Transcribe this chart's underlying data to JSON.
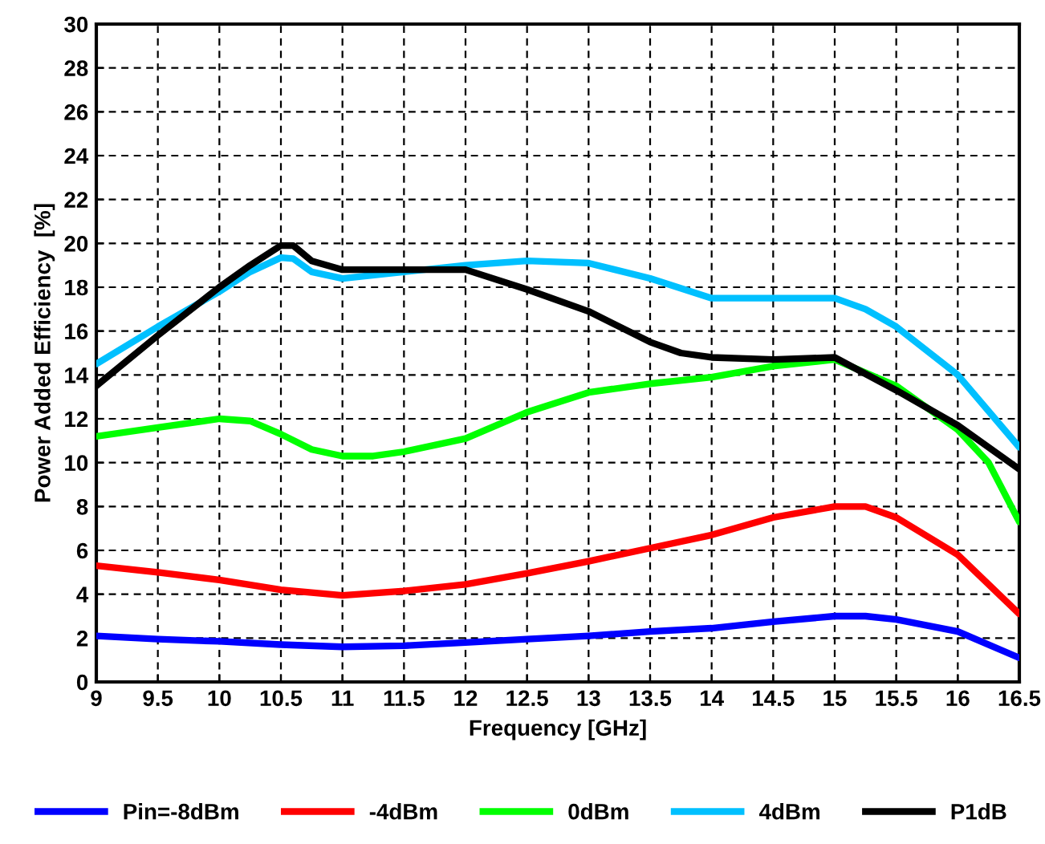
{
  "chart_data": {
    "type": "line",
    "xlabel": "Frequency [GHz]",
    "ylabel": "Power Added Efficiency  [%]",
    "xlim": [
      9,
      16.5
    ],
    "xticks": [
      9,
      9.5,
      10,
      10.5,
      11,
      11.5,
      12,
      12.5,
      13,
      13.5,
      14,
      14.5,
      15,
      15.5,
      16,
      16.5
    ],
    "ylim": [
      0,
      30
    ],
    "yticks": [
      0,
      2,
      4,
      6,
      8,
      10,
      12,
      14,
      16,
      18,
      20,
      22,
      24,
      26,
      28,
      30
    ],
    "grid": true,
    "legend": "bottom",
    "marker": "none",
    "line_style": "solid",
    "series": [
      {
        "name": "Pin=-8dBm",
        "color": "#0000ff",
        "x": [
          9,
          9.5,
          10,
          10.5,
          11,
          11.5,
          12,
          12.5,
          13,
          13.5,
          14,
          14.5,
          15,
          15.25,
          15.5,
          16,
          16.5
        ],
        "values": [
          2.1,
          1.95,
          1.85,
          1.7,
          1.6,
          1.65,
          1.8,
          1.95,
          2.1,
          2.3,
          2.45,
          2.75,
          3.0,
          3.0,
          2.85,
          2.3,
          1.1
        ]
      },
      {
        "name": "-4dBm",
        "color": "#ff0000",
        "x": [
          9,
          9.5,
          10,
          10.5,
          11,
          11.5,
          12,
          12.5,
          13,
          13.5,
          14,
          14.5,
          15,
          15.25,
          15.5,
          16,
          16.5
        ],
        "values": [
          5.3,
          5.0,
          4.65,
          4.2,
          3.95,
          4.15,
          4.45,
          4.95,
          5.5,
          6.1,
          6.7,
          7.5,
          8.0,
          8.0,
          7.5,
          5.8,
          3.1
        ]
      },
      {
        "name": "0dBm",
        "color": "#00ff00",
        "x": [
          9,
          9.5,
          10,
          10.25,
          10.5,
          10.75,
          11,
          11.25,
          11.5,
          12,
          12.5,
          13,
          13.5,
          14,
          14.5,
          15,
          15.5,
          16,
          16.25,
          16.5
        ],
        "values": [
          11.2,
          11.6,
          12.0,
          11.9,
          11.3,
          10.6,
          10.3,
          10.3,
          10.5,
          11.1,
          12.3,
          13.2,
          13.6,
          13.9,
          14.4,
          14.7,
          13.5,
          11.5,
          10.0,
          7.3
        ]
      },
      {
        "name": "4dBm",
        "color": "#00c0ff",
        "x": [
          9,
          9.5,
          10,
          10.25,
          10.5,
          10.6,
          10.75,
          11,
          11.5,
          12,
          12.5,
          13,
          13.5,
          14,
          14.5,
          15,
          15.25,
          15.5,
          16,
          16.5
        ],
        "values": [
          14.5,
          16.2,
          17.8,
          18.7,
          19.35,
          19.3,
          18.7,
          18.4,
          18.7,
          19.0,
          19.2,
          19.1,
          18.4,
          17.5,
          17.5,
          17.5,
          17.0,
          16.2,
          14.0,
          10.7
        ]
      },
      {
        "name": "P1dB",
        "color": "#000000",
        "x": [
          9,
          9.5,
          10,
          10.25,
          10.5,
          10.6,
          10.75,
          11,
          11.5,
          12,
          12.5,
          13,
          13.5,
          13.75,
          14,
          14.5,
          15,
          15.5,
          16,
          16.5
        ],
        "values": [
          13.5,
          15.8,
          18.0,
          19.0,
          19.9,
          19.9,
          19.2,
          18.8,
          18.8,
          18.8,
          17.9,
          16.9,
          15.5,
          15.0,
          14.8,
          14.7,
          14.8,
          13.3,
          11.7,
          9.7
        ]
      }
    ]
  }
}
